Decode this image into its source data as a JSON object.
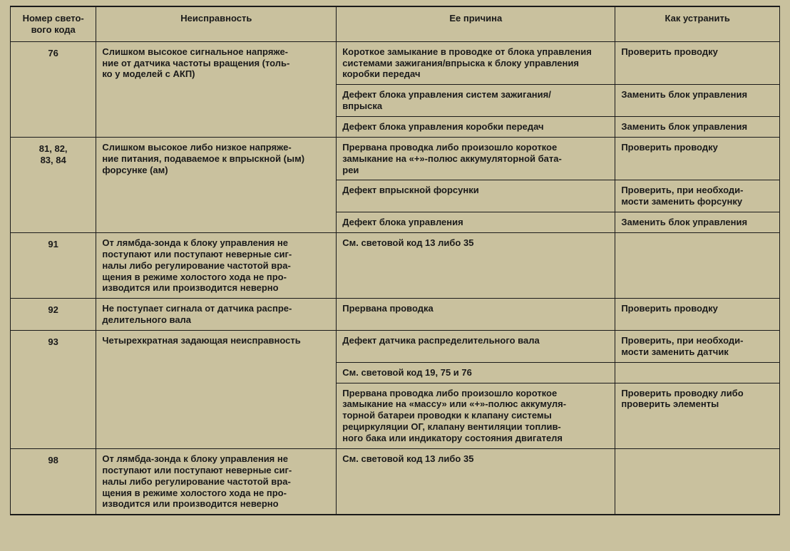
{
  "headers": {
    "code": "Номер свето-\nвого кода",
    "fault": "Неисправность",
    "cause": "Ее причина",
    "fix": "Как устранить"
  },
  "rows": [
    {
      "code": "76",
      "fault": "Слишком высокое сигнальное напряже-\nние от датчика частоты вращения (толь-\nко у моделей с АКП)",
      "causes": [
        "Короткое замыкание в проводке от блока управления системами зажигания/впрыска к блоку управления коробки передач",
        "Дефект блока управления систем зажигания/\nвпрыска",
        "Дефект блока управления коробки передач"
      ],
      "fixes": [
        "Проверить проводку",
        "Заменить блок управления",
        "Заменить блок управления"
      ]
    },
    {
      "code": "81, 82,\n83, 84",
      "fault": "Слишком высокое либо низкое напряже-\nние питания, подаваемое к впрыскной (ым) форсунке (ам)",
      "causes": [
        "Прервана проводка либо произошло короткое замыкание на «+»-полюс аккумуляторной бата-\nреи",
        "Дефект впрыскной форсунки",
        "Дефект блока управления"
      ],
      "fixes": [
        "Проверить проводку",
        "Проверить, при необходи-\nмости заменить форсунку",
        "Заменить блок управления"
      ]
    },
    {
      "code": "91",
      "fault": "От лямбда-зонда к блоку управления не поступают или поступают неверные сиг-\nналы либо регулирование частотой вра-\nщения в режиме холостого хода не про-\nизводится или производится неверно",
      "causes": [
        "См. световой код 13 либо 35"
      ],
      "fixes": [
        ""
      ]
    },
    {
      "code": "92",
      "fault": "Не поступает сигнала от датчика распре-\nделительного вала",
      "causes": [
        "Прервана проводка"
      ],
      "fixes": [
        "Проверить проводку"
      ]
    },
    {
      "code": "93",
      "fault": "Четырехкратная задающая неисправность",
      "causes": [
        "Дефект датчика распределительного вала",
        "См. световой код 19, 75 и 76",
        "Прервана проводка либо произошло короткое замыкание на «массу» или «+»-полюс аккумуля-\nторной батареи проводки к клапану системы рециркуляции ОГ, клапану вентиляции топлив-\nного бака или индикатору состояния двигателя"
      ],
      "fixes": [
        "Проверить, при необходи-\nмости заменить датчик",
        "",
        "Проверить проводку либо проверить элементы"
      ]
    },
    {
      "code": "98",
      "fault": "От лямбда-зонда к блоку управления не поступают или поступают неверные сиг-\nналы либо регулирование частотой вра-\nщения в режиме холостого хода не про-\nизводится или производится неверно",
      "causes": [
        "См. световой код 13 либо 35"
      ],
      "fixes": [
        ""
      ]
    }
  ]
}
